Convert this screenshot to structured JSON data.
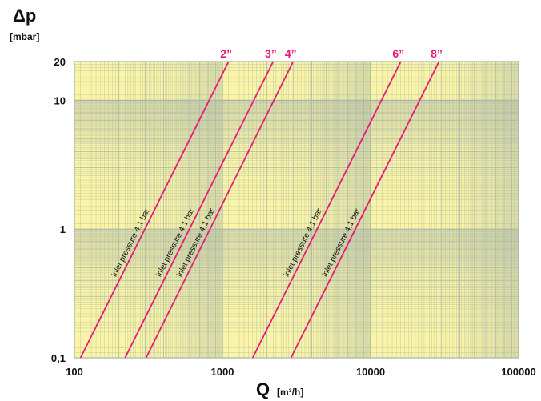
{
  "chart_data": {
    "type": "line",
    "title": "",
    "ylabel_symbol": "Δp",
    "ylabel_unit": "[mbar]",
    "xlabel_symbol": "Q",
    "xlabel_unit": "[m³/h]",
    "x_scale": "log",
    "y_scale": "log",
    "xlim": [
      100,
      100000
    ],
    "ylim": [
      0.1,
      20
    ],
    "x_ticks": [
      {
        "value": 100,
        "label": "100"
      },
      {
        "value": 1000,
        "label": "1000"
      },
      {
        "value": 10000,
        "label": "10000"
      },
      {
        "value": 100000,
        "label": "100000"
      }
    ],
    "y_ticks": [
      {
        "value": 0.1,
        "label": "0,1"
      },
      {
        "value": 1,
        "label": "1"
      },
      {
        "value": 10,
        "label": "10"
      },
      {
        "value": 20,
        "label": "20"
      }
    ],
    "grid": true,
    "background_color": "#faf5a6",
    "grid_color": "#a9b6a8",
    "line_color": "#e6197a",
    "series": [
      {
        "name": "2”",
        "annotation": "inlet pressure 4,1 bar",
        "x": [
          110,
          1100
        ],
        "y": [
          0.1,
          20
        ]
      },
      {
        "name": "3”",
        "annotation": "inlet pressure 4,1 bar",
        "x": [
          220,
          2200
        ],
        "y": [
          0.1,
          20
        ]
      },
      {
        "name": "4”",
        "annotation": "inlet pressure 4,1 bar",
        "x": [
          305,
          3000
        ],
        "y": [
          0.1,
          20
        ]
      },
      {
        "name": "6”",
        "annotation": "inlet pressure 4,1 bar",
        "x": [
          1600,
          16000
        ],
        "y": [
          0.1,
          20
        ]
      },
      {
        "name": "8”",
        "annotation": "inlet pressure 4,1 bar",
        "x": [
          2900,
          29000
        ],
        "y": [
          0.1,
          20
        ]
      }
    ]
  }
}
